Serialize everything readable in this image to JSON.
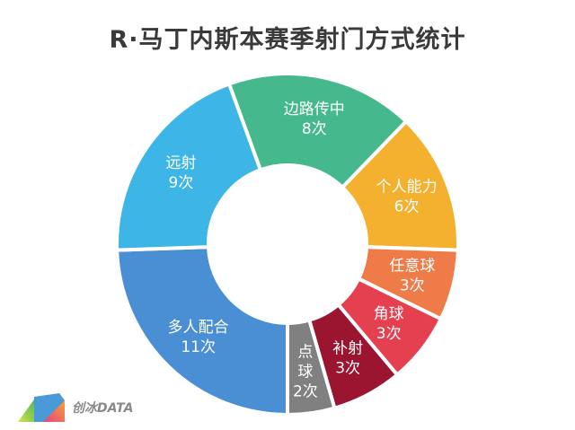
{
  "title": "R·马丁内斯本赛季射门方式统计",
  "logo": {
    "text": "创冰DATA"
  },
  "chart_data": {
    "type": "pie",
    "subtype": "donut",
    "title": "R·马丁内斯本赛季射门方式统计",
    "unit": "次",
    "categories": [
      "边路传中",
      "个人能力",
      "任意球",
      "角球",
      "补射",
      "点球",
      "多人配合",
      "远射"
    ],
    "values": [
      8,
      6,
      3,
      3,
      3,
      2,
      11,
      9
    ],
    "colors": [
      "#46b88e",
      "#f4b02f",
      "#ee7b48",
      "#e5404f",
      "#9b1430",
      "#808080",
      "#4a8fd4",
      "#3db5e6"
    ],
    "labels": [
      "边路传中\n8次",
      "个人能力\n6次",
      "任意球\n3次",
      "角球\n3次",
      "补射\n3次",
      "点\n球\n2次",
      "多人配合\n11次",
      "远射\n9次"
    ],
    "start_angle_deg": -20,
    "legend": "none"
  }
}
